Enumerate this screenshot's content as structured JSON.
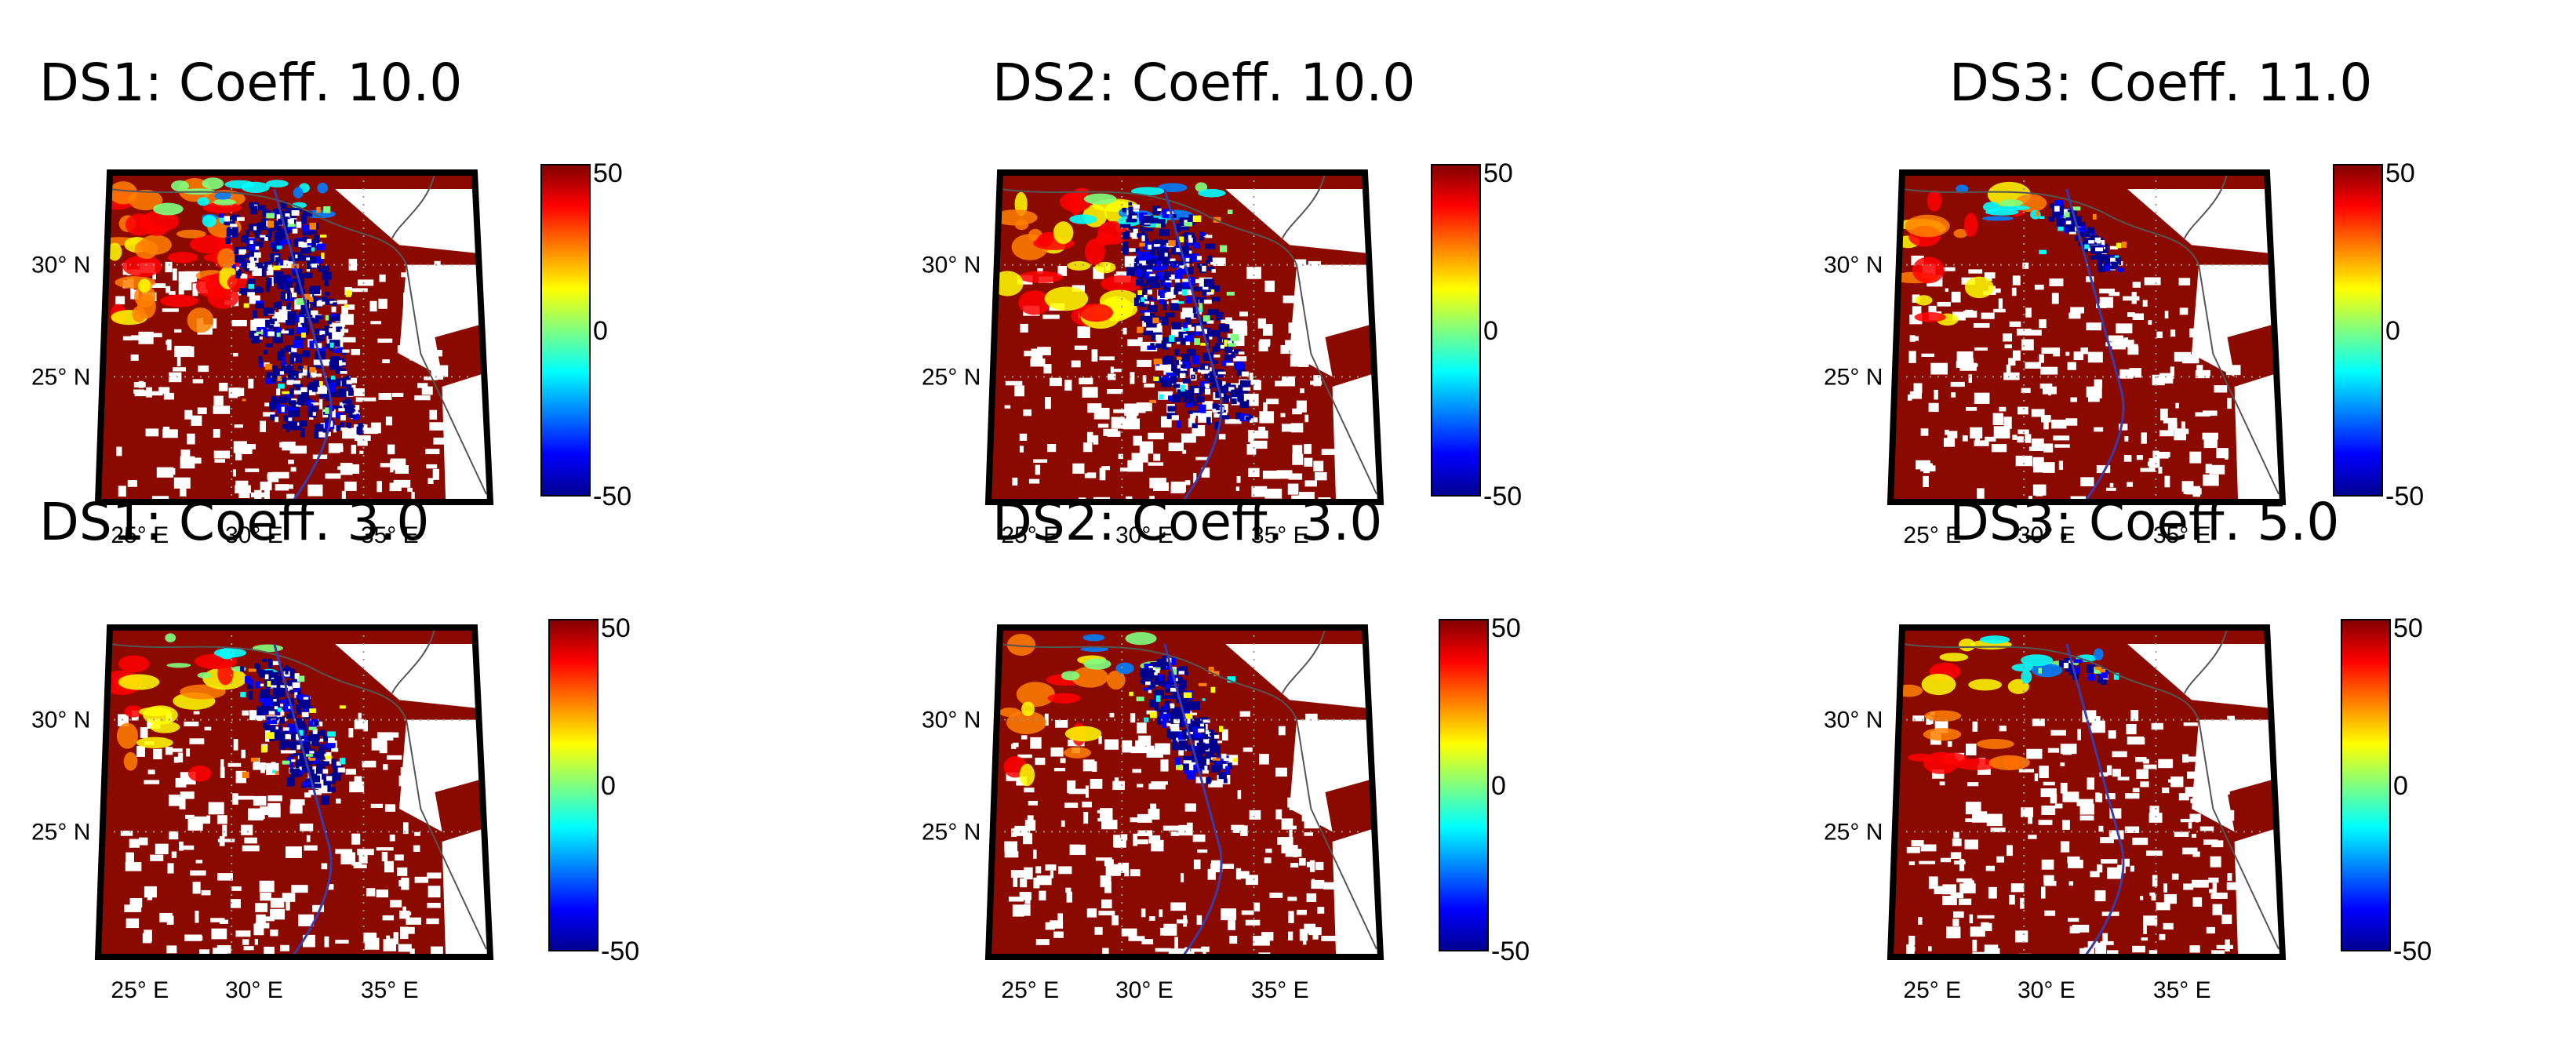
{
  "figure": {
    "panels": [
      {
        "id": "ds1-top",
        "title": "DS1: Coeff. 10.0",
        "dataset": "DS1",
        "coefficient": 10.0,
        "blue_extent": 0.8,
        "lowlevel_extent": 0.45
      },
      {
        "id": "ds2-top",
        "title": "DS2: Coeff. 10.0",
        "dataset": "DS2",
        "coefficient": 10.0,
        "blue_extent": 0.75,
        "lowlevel_extent": 0.35
      },
      {
        "id": "ds3-top",
        "title": "DS3: Coeff. 11.0",
        "dataset": "DS3",
        "coefficient": 11.0,
        "blue_extent": 0.2,
        "lowlevel_extent": 0.12
      },
      {
        "id": "ds1-bottom",
        "title": "DS1: Coeff. 3.0",
        "dataset": "DS1",
        "coefficient": 3.0,
        "blue_extent": 0.45,
        "lowlevel_extent": 0.12
      },
      {
        "id": "ds2-bottom",
        "title": "DS2: Coeff. 3.0",
        "dataset": "DS2",
        "coefficient": 3.0,
        "blue_extent": 0.4,
        "lowlevel_extent": 0.1
      },
      {
        "id": "ds3-bottom",
        "title": "DS3: Coeff. 5.0",
        "dataset": "DS3",
        "coefficient": 5.0,
        "blue_extent": 0.05,
        "lowlevel_extent": 0.12
      }
    ],
    "lat_ticks": [
      "30° N",
      "25° N"
    ],
    "lon_ticks": [
      "25° E",
      "30° E",
      "35° E"
    ],
    "colorbar": {
      "max_label": "50",
      "mid_label": "0",
      "min_label": "-50",
      "min": -50,
      "max": 50
    },
    "colors": {
      "background_field": "#8b0a00",
      "land_gap": "#ffffff",
      "low_value": "#00008f",
      "colormap": [
        "#00008f",
        "#0000ff",
        "#0080ff",
        "#00ffff",
        "#80ff80",
        "#ffff00",
        "#ff8000",
        "#ff0000",
        "#800000"
      ]
    }
  }
}
